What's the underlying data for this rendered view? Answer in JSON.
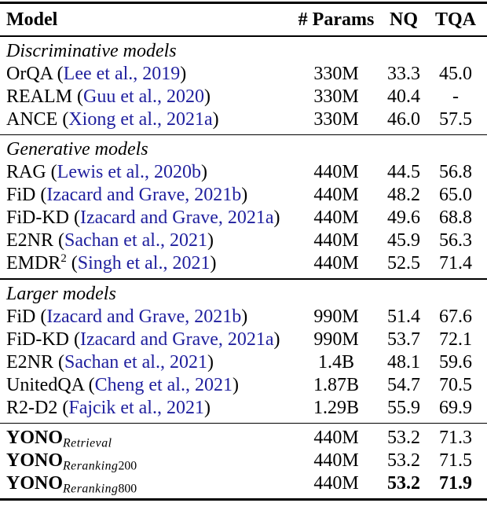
{
  "page": {
    "background": "#ffffff",
    "text_color": "#000000",
    "link_color": "#1f1f9e",
    "rule_color": "#000000"
  },
  "table": {
    "headers": {
      "model": "Model",
      "params": "# Params",
      "nq": "NQ",
      "tqa": "TQA"
    },
    "sections": [
      {
        "label": "Discriminative models",
        "rows": [
          {
            "model": "OrQA",
            "cite": "Lee et al., 2019",
            "params": "330M",
            "nq": "33.3",
            "tqa": "45.0"
          },
          {
            "model": "REALM",
            "cite": "Guu et al., 2020",
            "params": "330M",
            "nq": "40.4",
            "tqa": "-"
          },
          {
            "model": "ANCE",
            "cite": "Xiong et al., 2021a",
            "params": "330M",
            "nq": "46.0",
            "tqa": "57.5"
          }
        ]
      },
      {
        "label": "Generative models",
        "rows": [
          {
            "model": "RAG",
            "cite": "Lewis et al., 2020b",
            "params": "440M",
            "nq": "44.5",
            "tqa": "56.8"
          },
          {
            "model": "FiD",
            "cite": "Izacard and Grave, 2021b",
            "params": "440M",
            "nq": "48.2",
            "tqa": "65.0"
          },
          {
            "model": "FiD-KD",
            "cite": "Izacard and Grave, 2021a",
            "params": "440M",
            "nq": "49.6",
            "tqa": "68.8"
          },
          {
            "model": "E2NR",
            "cite": "Sachan et al., 2021",
            "params": "440M",
            "nq": "45.9",
            "tqa": "56.3"
          },
          {
            "model": "EMDR",
            "model_sup": "2",
            "cite": "Singh et al., 2021",
            "params": "440M",
            "nq": "52.5",
            "tqa": "71.4"
          }
        ]
      },
      {
        "label": "Larger models",
        "rows": [
          {
            "model": "FiD",
            "cite": "Izacard and Grave, 2021b",
            "params": "990M",
            "nq": "51.4",
            "tqa": "67.6"
          },
          {
            "model": "FiD-KD",
            "cite": "Izacard and Grave, 2021a",
            "params": "990M",
            "nq": "53.7",
            "tqa": "72.1"
          },
          {
            "model": "E2NR",
            "cite": "Sachan et al., 2021",
            "params": "1.4B",
            "nq": "48.1",
            "tqa": "59.6"
          },
          {
            "model": "UnitedQA",
            "cite": "Cheng et al., 2021",
            "params": "1.87B",
            "nq": "54.7",
            "tqa": "70.5"
          },
          {
            "model": "R2-D2",
            "cite": "Fajcik et al., 2021",
            "params": "1.29B",
            "nq": "55.9",
            "tqa": "69.9"
          }
        ]
      },
      {
        "label": null,
        "rows": [
          {
            "model": "YONO",
            "model_sub": "Retrieval",
            "bold_model": true,
            "params": "440M",
            "nq": "53.2",
            "tqa": "71.3"
          },
          {
            "model": "YONO",
            "model_sub": "Reranking200",
            "bold_model": true,
            "params": "440M",
            "nq": "53.2",
            "tqa": "71.5"
          },
          {
            "model": "YONO",
            "model_sub": "Reranking800",
            "bold_model": true,
            "params": "440M",
            "nq": "53.2",
            "tqa": "71.9",
            "bold_nq": true,
            "bold_tqa": true
          }
        ]
      }
    ]
  }
}
